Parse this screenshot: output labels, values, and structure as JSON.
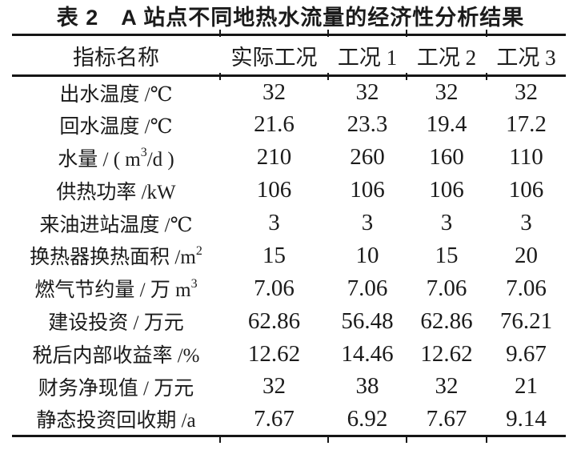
{
  "title": "表 2　A 站点不同地热水流量的经济性分析结果",
  "colors": {
    "text": "#1b1b1b",
    "rule": "#161616",
    "background": "#ffffff"
  },
  "table": {
    "columns": [
      "指标名称",
      "实际工况",
      "工况 1",
      "工况 2",
      "工况 3"
    ],
    "rows": [
      {
        "label_parts": [
          {
            "text": "出水温度 /℃"
          }
        ],
        "values": [
          "32",
          "32",
          "32",
          "32"
        ]
      },
      {
        "label_parts": [
          {
            "text": "回水温度 /℃"
          }
        ],
        "values": [
          "21.6",
          "23.3",
          "19.4",
          "17.2"
        ]
      },
      {
        "label_parts": [
          {
            "text": "水量 / ( m"
          },
          {
            "text": "3",
            "sup": true
          },
          {
            "text": "/d )"
          }
        ],
        "values": [
          "210",
          "260",
          "160",
          "110"
        ]
      },
      {
        "label_parts": [
          {
            "text": "供热功率 /kW"
          }
        ],
        "values": [
          "106",
          "106",
          "106",
          "106"
        ]
      },
      {
        "label_parts": [
          {
            "text": "来油进站温度 /℃"
          }
        ],
        "values": [
          "3",
          "3",
          "3",
          "3"
        ]
      },
      {
        "label_parts": [
          {
            "text": "换热器换热面积 /m"
          },
          {
            "text": "2",
            "sup": true
          }
        ],
        "values": [
          "15",
          "10",
          "15",
          "20"
        ]
      },
      {
        "label_parts": [
          {
            "text": "燃气节约量 / 万 m"
          },
          {
            "text": "3",
            "sup": true
          }
        ],
        "values": [
          "7.06",
          "7.06",
          "7.06",
          "7.06"
        ]
      },
      {
        "label_parts": [
          {
            "text": "建设投资 / 万元"
          }
        ],
        "values": [
          "62.86",
          "56.48",
          "62.86",
          "76.21"
        ]
      },
      {
        "label_parts": [
          {
            "text": "税后内部收益率 /%"
          }
        ],
        "values": [
          "12.62",
          "14.46",
          "12.62",
          "9.67"
        ]
      },
      {
        "label_parts": [
          {
            "text": "财务净现值 / 万元"
          }
        ],
        "values": [
          "32",
          "38",
          "32",
          "21"
        ]
      },
      {
        "label_parts": [
          {
            "text": "静态投资回收期 /a"
          }
        ],
        "values": [
          "7.67",
          "6.92",
          "7.67",
          "9.14"
        ]
      }
    ]
  }
}
